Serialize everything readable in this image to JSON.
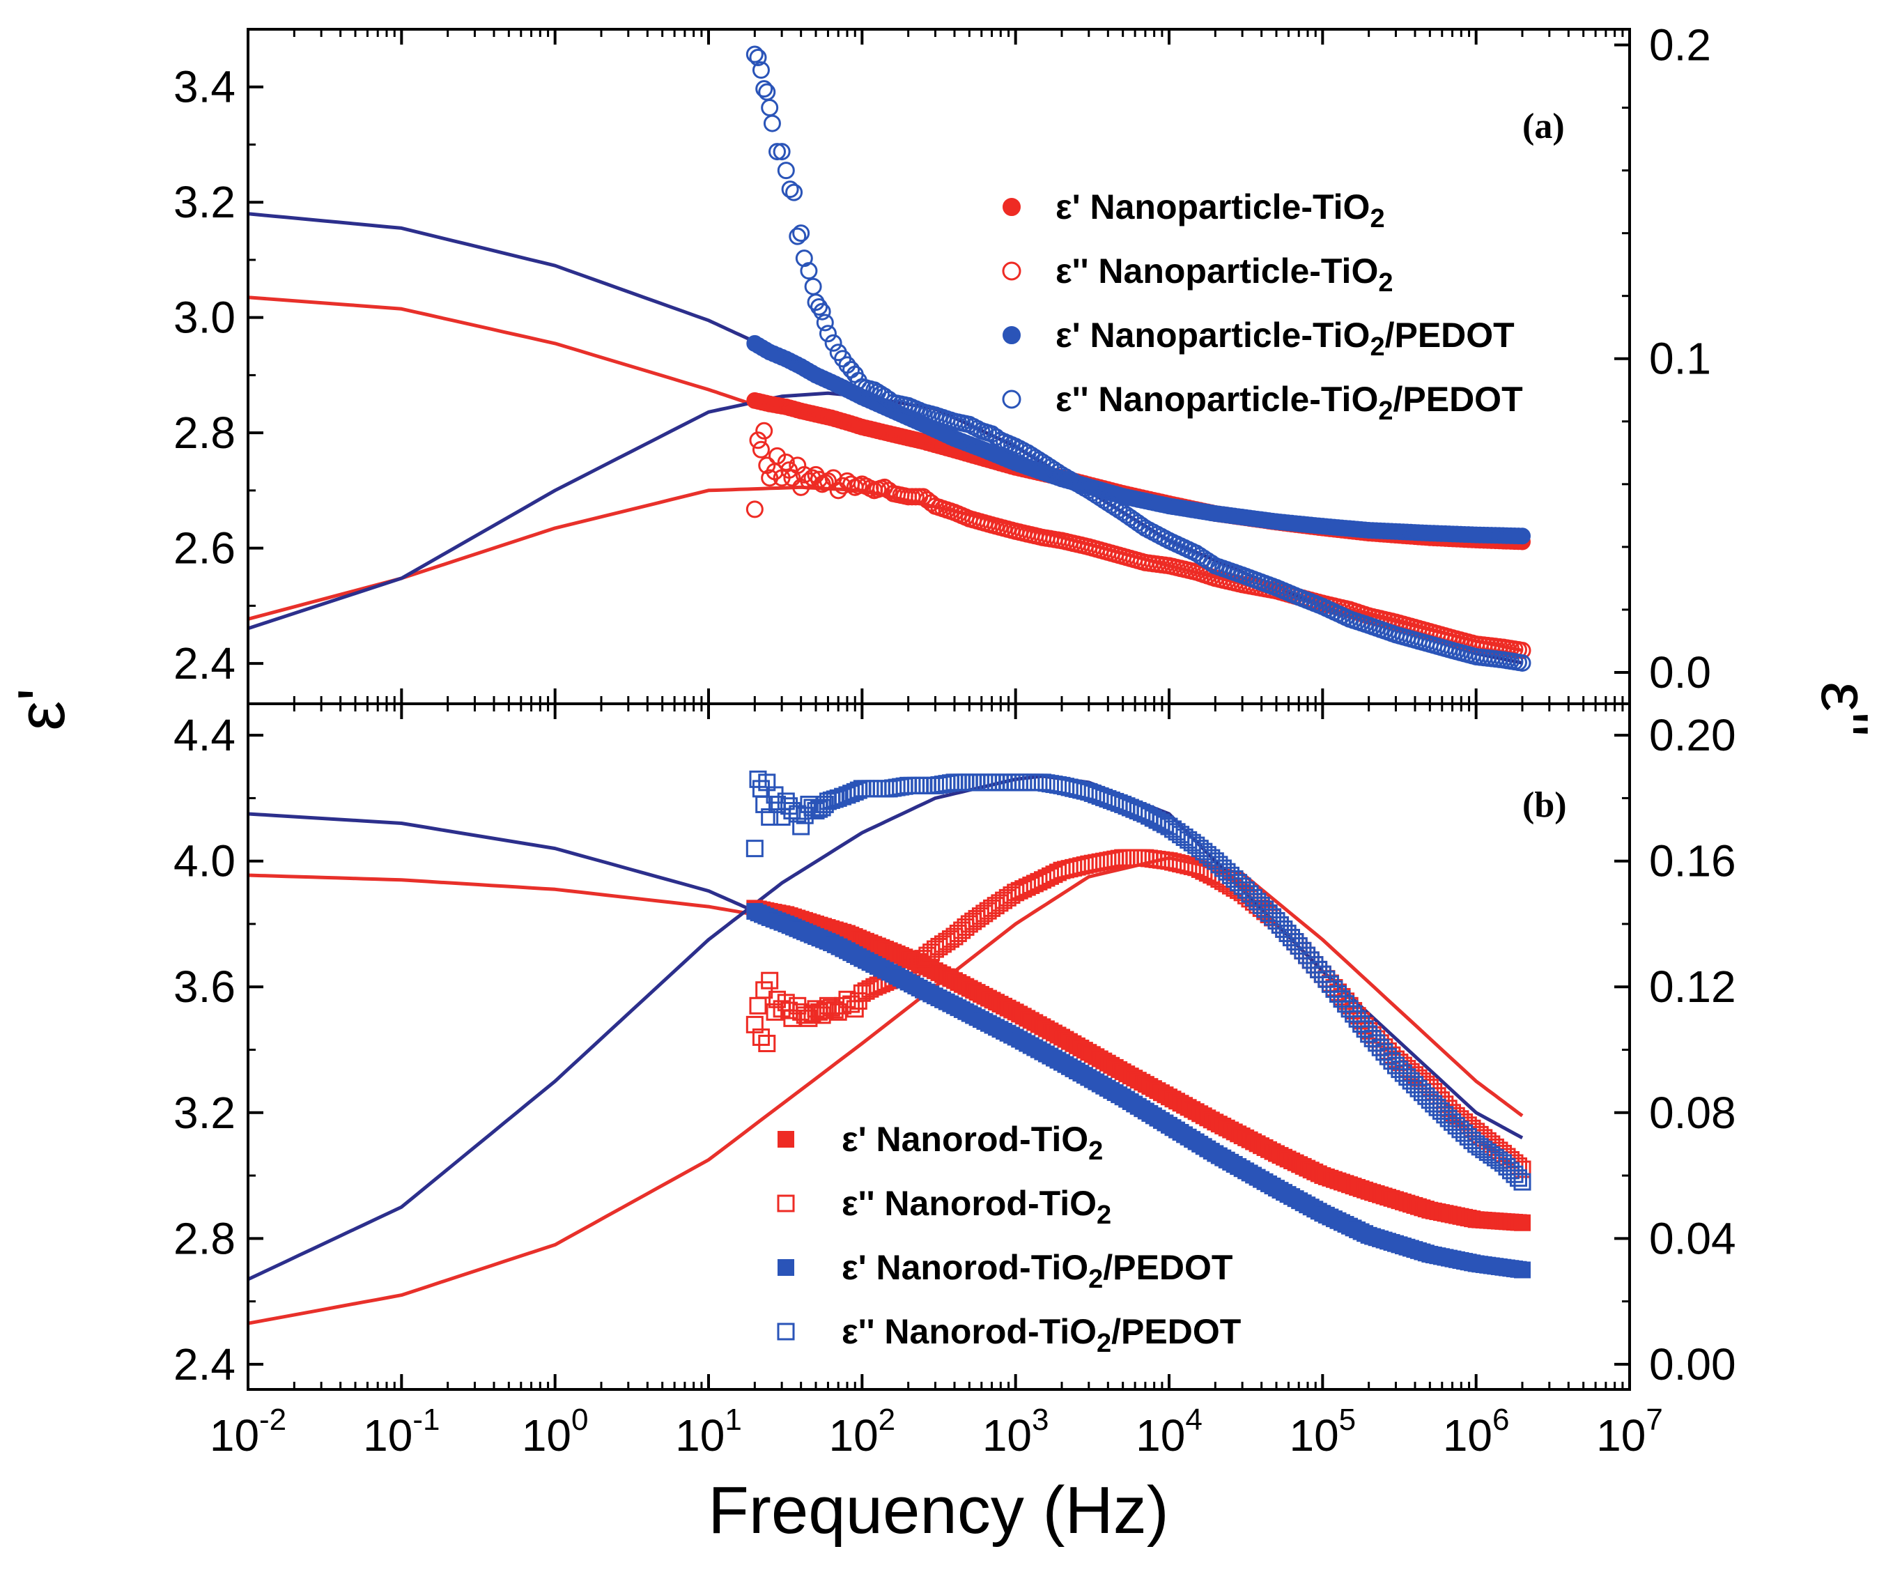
{
  "chart_data": [
    {
      "panel": "(a)",
      "type": "scatter",
      "xlabel": "Frequency (Hz)",
      "xscale": "log",
      "xlim": [
        0.01,
        10000000
      ],
      "x_tick_labels": [
        {
          "base": "10",
          "exp": "-2"
        },
        {
          "base": "10",
          "exp": "-1"
        },
        {
          "base": "10",
          "exp": "0"
        },
        {
          "base": "10",
          "exp": "1"
        },
        {
          "base": "10",
          "exp": "2"
        },
        {
          "base": "10",
          "exp": "3"
        },
        {
          "base": "10",
          "exp": "4"
        },
        {
          "base": "10",
          "exp": "5"
        },
        {
          "base": "10",
          "exp": "6"
        },
        {
          "base": "10",
          "exp": "7"
        }
      ],
      "ylabel_left": "ε'",
      "ylim_left": [
        2.33,
        3.5
      ],
      "yticks_left": [
        "2.4",
        "2.6",
        "2.8",
        "3.0",
        "3.2",
        "3.4"
      ],
      "ylabel_right": "ε''",
      "ylim_right": [
        -0.01,
        0.205
      ],
      "yticks_right": [
        "0.0",
        "0.1",
        "0.2"
      ],
      "legend_position": "upper-right",
      "series": [
        {
          "name": "ε' Nanoparticle-TiO2",
          "axis": "left",
          "color": "#ee2b24",
          "marker": "filled-circle",
          "points_x": [
            20,
            25,
            32,
            40,
            50,
            63,
            80,
            100,
            160,
            250,
            400,
            630,
            1000,
            2000,
            5000,
            10000,
            20000,
            50000,
            100000,
            200000,
            500000,
            1000000,
            2000000
          ],
          "points_y": [
            2.856,
            2.85,
            2.845,
            2.838,
            2.832,
            2.826,
            2.818,
            2.81,
            2.797,
            2.785,
            2.77,
            2.755,
            2.74,
            2.722,
            2.695,
            2.677,
            2.66,
            2.645,
            2.635,
            2.626,
            2.618,
            2.614,
            2.611
          ],
          "fit_x": [
            0.01,
            0.1,
            1,
            10,
            20,
            100,
            1000,
            10000,
            100000,
            1000000,
            2000000
          ],
          "fit_y": [
            3.035,
            3.015,
            2.955,
            2.875,
            2.848,
            2.812,
            2.74,
            2.677,
            2.635,
            2.615,
            2.611
          ]
        },
        {
          "name": "ε'' Nanoparticle-TiO2",
          "axis": "right",
          "color": "#ee2b24",
          "marker": "open-circle",
          "points_x": [
            20,
            21,
            22,
            23,
            24,
            25,
            27,
            28,
            30,
            32,
            35,
            38,
            40,
            42,
            45,
            50,
            55,
            60,
            65,
            70,
            80,
            90,
            100,
            120,
            140,
            160,
            200,
            250,
            300,
            400,
            500,
            700,
            1000,
            1500,
            2000,
            3000,
            5000,
            7000,
            10000,
            15000,
            20000,
            30000,
            50000,
            70000,
            100000,
            150000,
            200000,
            300000,
            500000,
            700000,
            1000000,
            1500000,
            2000000
          ],
          "points_y": [
            0.052,
            0.074,
            0.071,
            0.077,
            0.066,
            0.062,
            0.064,
            0.069,
            0.062,
            0.067,
            0.062,
            0.066,
            0.059,
            0.063,
            0.061,
            0.063,
            0.06,
            0.061,
            0.062,
            0.058,
            0.061,
            0.059,
            0.06,
            0.058,
            0.059,
            0.057,
            0.056,
            0.056,
            0.053,
            0.051,
            0.049,
            0.047,
            0.045,
            0.043,
            0.042,
            0.04,
            0.037,
            0.035,
            0.034,
            0.032,
            0.03,
            0.028,
            0.026,
            0.024,
            0.022,
            0.02,
            0.018,
            0.016,
            0.013,
            0.011,
            0.009,
            0.008,
            0.007
          ],
          "fit_x": [
            0.01,
            0.1,
            1,
            10,
            40,
            100,
            1000,
            10000,
            100000,
            1000000,
            2000000
          ],
          "fit_y": [
            0.017,
            0.03,
            0.046,
            0.058,
            0.059,
            0.058,
            0.047,
            0.034,
            0.022,
            0.01,
            0.007
          ]
        },
        {
          "name": "ε' Nanoparticle-TiO2/PEDOT",
          "axis": "left",
          "color": "#2a54b8",
          "marker": "filled-circle",
          "points_x": [
            20,
            25,
            32,
            40,
            50,
            63,
            80,
            100,
            160,
            250,
            400,
            630,
            1000,
            2000,
            5000,
            10000,
            20000,
            50000,
            100000,
            200000,
            500000,
            1000000,
            2000000
          ],
          "points_y": [
            2.955,
            2.94,
            2.928,
            2.915,
            2.9,
            2.888,
            2.875,
            2.862,
            2.838,
            2.815,
            2.79,
            2.77,
            2.748,
            2.72,
            2.69,
            2.673,
            2.66,
            2.646,
            2.638,
            2.631,
            2.626,
            2.623,
            2.621
          ],
          "fit_x": [
            0.01,
            0.1,
            1,
            10,
            20,
            100,
            1000,
            10000,
            100000,
            1000000,
            2000000
          ],
          "fit_y": [
            3.18,
            3.155,
            3.09,
            2.995,
            2.958,
            2.866,
            2.748,
            2.673,
            2.638,
            2.623,
            2.621
          ]
        },
        {
          "name": "ε'' Nanoparticle-TiO2/PEDOT",
          "axis": "right",
          "color": "#2a54b8",
          "marker": "open-circle",
          "points_x": [
            20,
            21,
            22,
            23,
            24,
            25,
            26,
            28,
            30,
            32,
            34,
            36,
            38,
            40,
            42,
            45,
            48,
            50,
            55,
            60,
            65,
            70,
            80,
            90,
            100,
            120,
            140,
            160,
            200,
            250,
            300,
            400,
            500,
            600,
            700,
            800,
            1000,
            1200,
            1500,
            2000,
            3000,
            5000,
            7000,
            10000,
            15000,
            20000,
            30000,
            50000,
            70000,
            100000,
            150000,
            200000,
            300000,
            500000,
            700000,
            1000000,
            1500000,
            2000000
          ],
          "points_y": [
            0.197,
            0.196,
            0.192,
            0.186,
            0.185,
            0.18,
            0.175,
            0.166,
            0.166,
            0.16,
            0.154,
            0.153,
            0.139,
            0.14,
            0.132,
            0.128,
            0.123,
            0.118,
            0.115,
            0.108,
            0.105,
            0.102,
            0.098,
            0.095,
            0.091,
            0.09,
            0.088,
            0.086,
            0.085,
            0.083,
            0.082,
            0.08,
            0.079,
            0.077,
            0.076,
            0.074,
            0.072,
            0.07,
            0.067,
            0.063,
            0.058,
            0.051,
            0.046,
            0.042,
            0.038,
            0.034,
            0.031,
            0.027,
            0.024,
            0.021,
            0.017,
            0.015,
            0.012,
            0.009,
            0.007,
            0.005,
            0.004,
            0.003
          ],
          "fit_x": [
            0.01,
            0.1,
            1,
            10,
            30,
            60,
            100,
            300,
            1000,
            10000,
            100000,
            1000000,
            2000000
          ],
          "fit_y": [
            0.014,
            0.03,
            0.058,
            0.083,
            0.088,
            0.089,
            0.088,
            0.084,
            0.072,
            0.042,
            0.021,
            0.006,
            0.003
          ]
        }
      ]
    },
    {
      "panel": "(b)",
      "type": "scatter",
      "xlabel": "Frequency (Hz)",
      "xscale": "log",
      "xlim": [
        0.01,
        10000000
      ],
      "ylabel_left": "ε'",
      "ylim_left": [
        2.32,
        4.5
      ],
      "yticks_left": [
        "2.4",
        "2.8",
        "3.2",
        "3.6",
        "4.0",
        "4.4"
      ],
      "ylabel_right": "ε''",
      "ylim_right": [
        -0.008,
        0.21
      ],
      "yticks_right": [
        "0.00",
        "0.04",
        "0.08",
        "0.12",
        "0.16",
        "0.20"
      ],
      "legend_position": "lower-center",
      "series": [
        {
          "name": "ε' Nanorod-TiO2",
          "axis": "left",
          "color": "#ee2b24",
          "marker": "filled-square",
          "points_x": [
            20,
            25,
            32,
            40,
            50,
            63,
            80,
            100,
            160,
            250,
            400,
            630,
            1000,
            2000,
            5000,
            10000,
            20000,
            50000,
            100000,
            200000,
            500000,
            1000000,
            2000000
          ],
          "points_y": [
            3.85,
            3.84,
            3.83,
            3.815,
            3.8,
            3.785,
            3.77,
            3.75,
            3.71,
            3.67,
            3.62,
            3.57,
            3.52,
            3.44,
            3.33,
            3.25,
            3.17,
            3.07,
            3.0,
            2.95,
            2.89,
            2.86,
            2.85
          ],
          "fit_x": [
            0.01,
            0.1,
            1,
            10,
            20,
            100,
            1000,
            10000,
            100000,
            1000000,
            2000000
          ],
          "fit_y": [
            3.955,
            3.94,
            3.91,
            3.855,
            3.83,
            3.755,
            3.525,
            3.25,
            3.0,
            2.865,
            2.85
          ]
        },
        {
          "name": "ε'' Nanorod-TiO2",
          "axis": "right",
          "color": "#ee2b24",
          "marker": "open-square",
          "points_x": [
            20,
            21,
            22,
            23,
            24,
            25,
            27,
            28,
            30,
            32,
            35,
            38,
            40,
            45,
            50,
            55,
            60,
            70,
            80,
            90,
            100,
            120,
            150,
            200,
            250,
            300,
            400,
            500,
            700,
            1000,
            1500,
            2000,
            3000,
            5000,
            7000,
            10000,
            15000,
            20000,
            30000,
            50000,
            70000,
            100000,
            150000,
            200000,
            300000,
            500000,
            700000,
            1000000,
            1500000,
            2000000
          ],
          "points_y": [
            0.108,
            0.114,
            0.104,
            0.119,
            0.102,
            0.122,
            0.112,
            0.116,
            0.113,
            0.115,
            0.11,
            0.114,
            0.112,
            0.11,
            0.113,
            0.111,
            0.114,
            0.112,
            0.116,
            0.113,
            0.118,
            0.12,
            0.122,
            0.125,
            0.129,
            0.132,
            0.136,
            0.14,
            0.145,
            0.15,
            0.154,
            0.157,
            0.159,
            0.161,
            0.161,
            0.16,
            0.158,
            0.155,
            0.15,
            0.141,
            0.133,
            0.124,
            0.114,
            0.106,
            0.097,
            0.088,
            0.08,
            0.074,
            0.067,
            0.062
          ],
          "fit_x": [
            0.01,
            0.1,
            1,
            10,
            100,
            1000,
            3000,
            10000,
            30000,
            100000,
            1000000,
            2000000
          ],
          "fit_y": [
            0.013,
            0.022,
            0.038,
            0.065,
            0.102,
            0.14,
            0.155,
            0.161,
            0.156,
            0.135,
            0.09,
            0.079
          ]
        },
        {
          "name": "ε' Nanorod-TiO2/PEDOT",
          "axis": "left",
          "color": "#2a54b8",
          "marker": "filled-square",
          "points_x": [
            20,
            25,
            32,
            40,
            50,
            63,
            80,
            100,
            160,
            250,
            400,
            630,
            1000,
            2000,
            5000,
            10000,
            20000,
            50000,
            100000,
            200000,
            500000,
            1000000,
            2000000
          ],
          "points_y": [
            3.84,
            3.82,
            3.8,
            3.78,
            3.76,
            3.74,
            3.715,
            3.69,
            3.64,
            3.59,
            3.54,
            3.49,
            3.44,
            3.36,
            3.25,
            3.16,
            3.07,
            2.96,
            2.88,
            2.81,
            2.75,
            2.72,
            2.7
          ],
          "fit_x": [
            0.01,
            0.1,
            1,
            10,
            20,
            100,
            1000,
            10000,
            100000,
            1000000,
            2000000
          ],
          "fit_y": [
            4.15,
            4.12,
            4.04,
            3.905,
            3.84,
            3.69,
            3.44,
            3.16,
            2.88,
            2.72,
            2.7
          ]
        },
        {
          "name": "ε'' Nanorod-TiO2/PEDOT",
          "axis": "right",
          "color": "#2a54b8",
          "marker": "open-square",
          "points_x": [
            20,
            21,
            22,
            23,
            24,
            25,
            27,
            28,
            30,
            32,
            35,
            38,
            40,
            45,
            50,
            55,
            60,
            70,
            80,
            90,
            100,
            120,
            150,
            200,
            250,
            300,
            400,
            500,
            700,
            1000,
            1500,
            2000,
            3000,
            5000,
            7000,
            10000,
            15000,
            20000,
            30000,
            50000,
            70000,
            100000,
            150000,
            200000,
            300000,
            500000,
            700000,
            1000000,
            1500000,
            2000000
          ],
          "points_y": [
            0.164,
            0.186,
            0.183,
            0.178,
            0.185,
            0.174,
            0.181,
            0.178,
            0.174,
            0.179,
            0.176,
            0.175,
            0.171,
            0.178,
            0.176,
            0.177,
            0.179,
            0.18,
            0.181,
            0.182,
            0.183,
            0.183,
            0.183,
            0.184,
            0.184,
            0.184,
            0.185,
            0.185,
            0.185,
            0.185,
            0.185,
            0.184,
            0.182,
            0.178,
            0.175,
            0.171,
            0.165,
            0.16,
            0.152,
            0.141,
            0.133,
            0.124,
            0.113,
            0.105,
            0.095,
            0.084,
            0.077,
            0.07,
            0.064,
            0.058
          ],
          "fit_x": [
            0.01,
            0.1,
            1,
            10,
            30,
            100,
            300,
            1000,
            1500,
            3000,
            10000,
            100000,
            1000000,
            2000000
          ],
          "fit_y": [
            0.027,
            0.05,
            0.09,
            0.135,
            0.153,
            0.169,
            0.18,
            0.186,
            0.187,
            0.185,
            0.175,
            0.125,
            0.08,
            0.072
          ]
        }
      ]
    }
  ]
}
